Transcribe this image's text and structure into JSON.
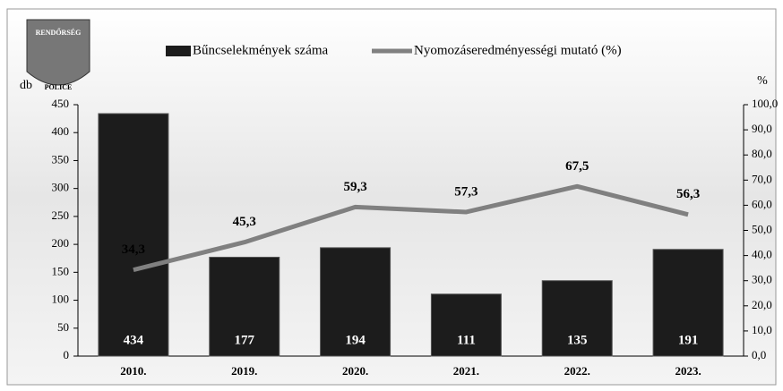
{
  "logo": {
    "top": "RENDŐRSÉG",
    "bottom": "POLICE"
  },
  "chart_data": {
    "type": "bar-line",
    "ylabel": "db",
    "y2label": "%",
    "categories": [
      "2010.",
      "2019.",
      "2020.",
      "2021.",
      "2022.",
      "2023."
    ],
    "series": [
      {
        "name": "Bűncselekmények száma",
        "type": "bar",
        "color": "#1c1c1c",
        "values": [
          434,
          177,
          194,
          111,
          135,
          191
        ]
      },
      {
        "name": "Nyomozáseredményességi mutató (%)",
        "type": "line",
        "axis": "y2",
        "color": "#808080",
        "values": [
          34.3,
          45.3,
          59.3,
          57.3,
          67.5,
          56.3
        ],
        "value_labels": [
          "34,3",
          "45,3",
          "59,3",
          "57,3",
          "67,5",
          "56,3"
        ]
      }
    ],
    "ylim": [
      0,
      450
    ],
    "yticks": [
      0,
      50,
      100,
      150,
      200,
      250,
      300,
      350,
      400,
      450
    ],
    "y2lim": [
      0,
      100
    ],
    "y2ticks": [
      {
        "value": 0,
        "label": "0,0"
      },
      {
        "value": 10,
        "label": "10,0"
      },
      {
        "value": 20,
        "label": "20,0"
      },
      {
        "value": 30,
        "label": "30,0"
      },
      {
        "value": 40,
        "label": "40,0"
      },
      {
        "value": 50,
        "label": "50,0"
      },
      {
        "value": 60,
        "label": "60,0"
      },
      {
        "value": 70,
        "label": "70,0"
      },
      {
        "value": 80,
        "label": "80,0"
      },
      {
        "value": 90,
        "label": "90,0"
      },
      {
        "value": 100,
        "label": "100,0"
      }
    ],
    "legend": "top"
  }
}
